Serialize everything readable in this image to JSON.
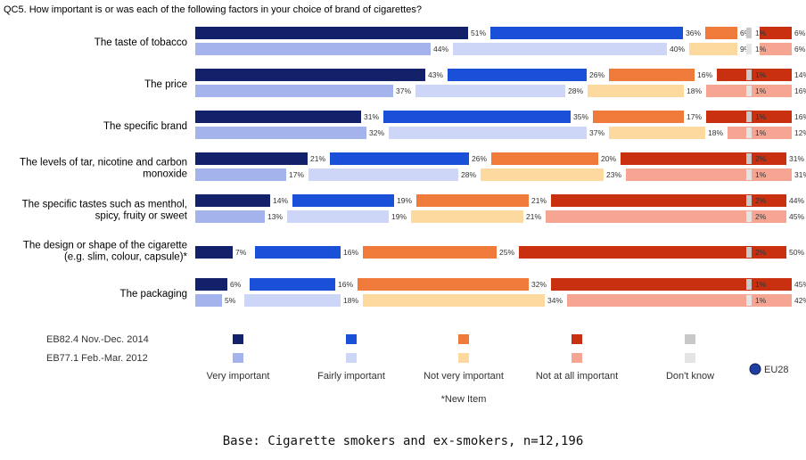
{
  "footnote": "Base: Cigarette smokers and ex-smokers, n=12,196",
  "chart_data": {
    "type": "bar",
    "subtype": "stacked-horizontal-100",
    "title": "QC5. How important is or was each of the following factors in your choice of brand of cigarettes?",
    "categories": [
      "The taste of tobacco",
      "The price",
      "The specific brand",
      "The levels of tar, nicotine and carbon monoxide",
      "The specific tastes such as menthol, spicy, fruity or sweet",
      "The design or shape of the cigarette (e.g. slim, colour, capsule)*",
      "The packaging"
    ],
    "responses": [
      "Very important",
      "Fairly important",
      "Not very important",
      "Not at all important",
      "Don't know"
    ],
    "series": [
      {
        "name": "EB82.4 Nov.-Dec. 2014",
        "colors": [
          "#13216a",
          "#1a50d8",
          "#f07a3a",
          "#c9300f",
          "#c8c8c8"
        ],
        "values": [
          [
            51,
            36,
            6,
            6,
            1
          ],
          [
            43,
            26,
            16,
            14,
            1
          ],
          [
            31,
            35,
            17,
            16,
            1
          ],
          [
            21,
            26,
            20,
            31,
            2
          ],
          [
            14,
            19,
            21,
            44,
            2
          ],
          [
            7,
            16,
            25,
            50,
            2
          ],
          [
            6,
            16,
            32,
            45,
            1
          ]
        ]
      },
      {
        "name": "EB77.1 Feb.-Mar. 2012",
        "colors": [
          "#a4b3ec",
          "#cdd6f6",
          "#fcd99e",
          "#f6a592",
          "#e4e4e4"
        ],
        "values": [
          [
            44,
            40,
            9,
            6,
            1
          ],
          [
            37,
            28,
            18,
            16,
            1
          ],
          [
            32,
            37,
            18,
            12,
            1
          ],
          [
            17,
            28,
            23,
            31,
            1
          ],
          [
            13,
            19,
            21,
            45,
            2
          ],
          [
            null,
            null,
            null,
            null,
            null
          ],
          [
            5,
            18,
            34,
            42,
            1
          ]
        ]
      }
    ],
    "legend_badge": "EU28",
    "note": "*New Item"
  }
}
